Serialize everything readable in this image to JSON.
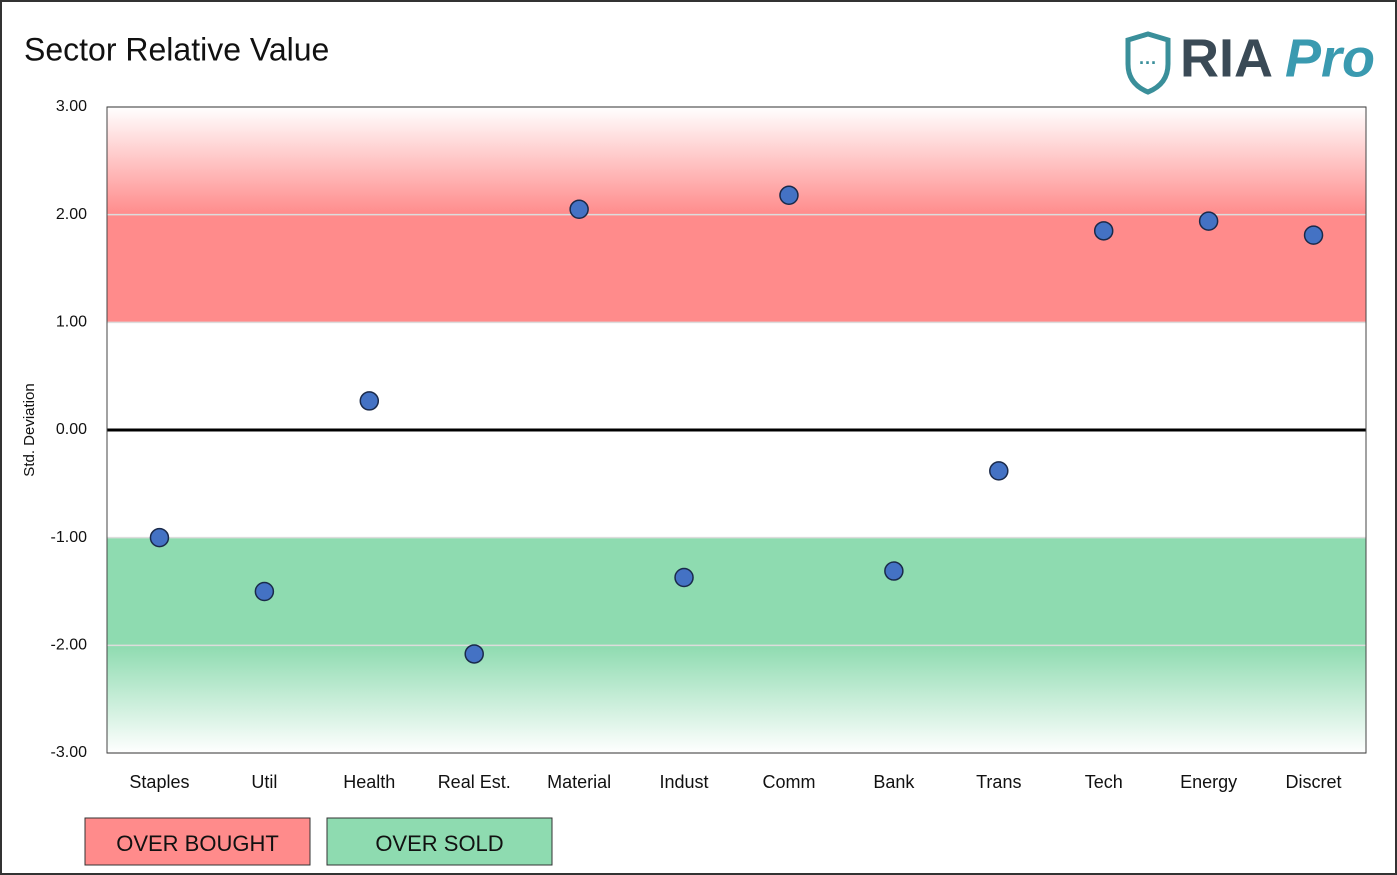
{
  "chart_data": {
    "type": "scatter",
    "title": "Sector Relative Value",
    "logo": {
      "text": "RIA",
      "accent": "Pro"
    },
    "y_label": "Std. Deviation",
    "categories": [
      "Staples",
      "Util",
      "Health",
      "Real Est.",
      "Material",
      "Indust",
      "Comm",
      "Bank",
      "Trans",
      "Tech",
      "Energy",
      "Discret"
    ],
    "values": [
      -1.0,
      -1.5,
      0.27,
      -2.08,
      2.05,
      -1.37,
      2.18,
      -1.31,
      -0.38,
      1.85,
      1.94,
      1.81
    ],
    "color": "#4472c4",
    "ylim": [
      -3,
      3
    ],
    "yticks": [
      {
        "value": -3,
        "label": "-3.00"
      },
      {
        "value": -2,
        "label": "-2.00"
      },
      {
        "value": -1,
        "label": "-1.00"
      },
      {
        "value": 0,
        "label": "0.00"
      },
      {
        "value": 1,
        "label": "1.00"
      },
      {
        "value": 2,
        "label": "2.00"
      },
      {
        "value": 3,
        "label": "3.00"
      }
    ],
    "grid": true,
    "bands": [
      {
        "label": "OVER BOUGHT",
        "color": "#ff8b8b",
        "from": 1,
        "to": 3
      },
      {
        "label": "OVER SOLD",
        "color": "#8edbb0",
        "from": -1,
        "to": -3
      }
    ]
  }
}
